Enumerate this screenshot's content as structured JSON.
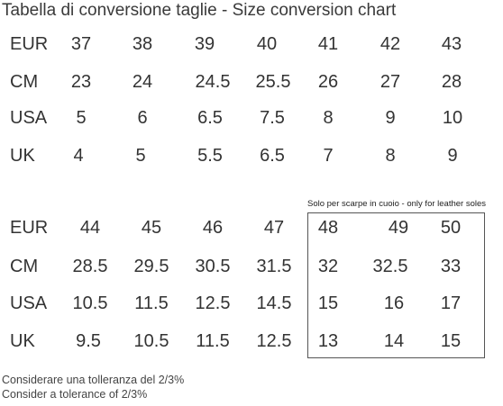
{
  "title": "Tabella di conversione taglie - Size conversion chart",
  "table1": {
    "rows": [
      {
        "label": "EUR",
        "values": [
          "37",
          "38",
          "39",
          "40",
          "41",
          "42",
          "43"
        ]
      },
      {
        "label": "CM",
        "values": [
          "23",
          "24",
          "24.5",
          "25.5",
          "26",
          "27",
          "28"
        ]
      },
      {
        "label": "USA",
        "values": [
          "5",
          "6",
          "6.5",
          "7.5",
          "8",
          "9",
          "10"
        ]
      },
      {
        "label": "UK",
        "values": [
          "4",
          "5",
          "5.5",
          "6.5",
          "7",
          "8",
          "9"
        ]
      }
    ]
  },
  "table2": {
    "leather_note": "Solo per scarpe in cuoio - only for leather soles",
    "rows": [
      {
        "label": "EUR",
        "values": [
          "44",
          "45",
          "46",
          "47",
          "48",
          "49",
          "50"
        ]
      },
      {
        "label": "CM",
        "values": [
          "28.5",
          "29.5",
          "30.5",
          "31.5",
          "32",
          "32.5",
          "33"
        ]
      },
      {
        "label": "USA",
        "values": [
          "10.5",
          "11.5",
          "12.5",
          "14.5",
          "15",
          "16",
          "17"
        ]
      },
      {
        "label": "UK",
        "values": [
          "9.5",
          "10.5",
          "11.5",
          "12.5",
          "13",
          "14",
          "15"
        ]
      }
    ]
  },
  "footnotes": {
    "line1": "Considerare una tolleranza del 2/3%",
    "line2": "Consider a tolerance of 2/3%"
  }
}
